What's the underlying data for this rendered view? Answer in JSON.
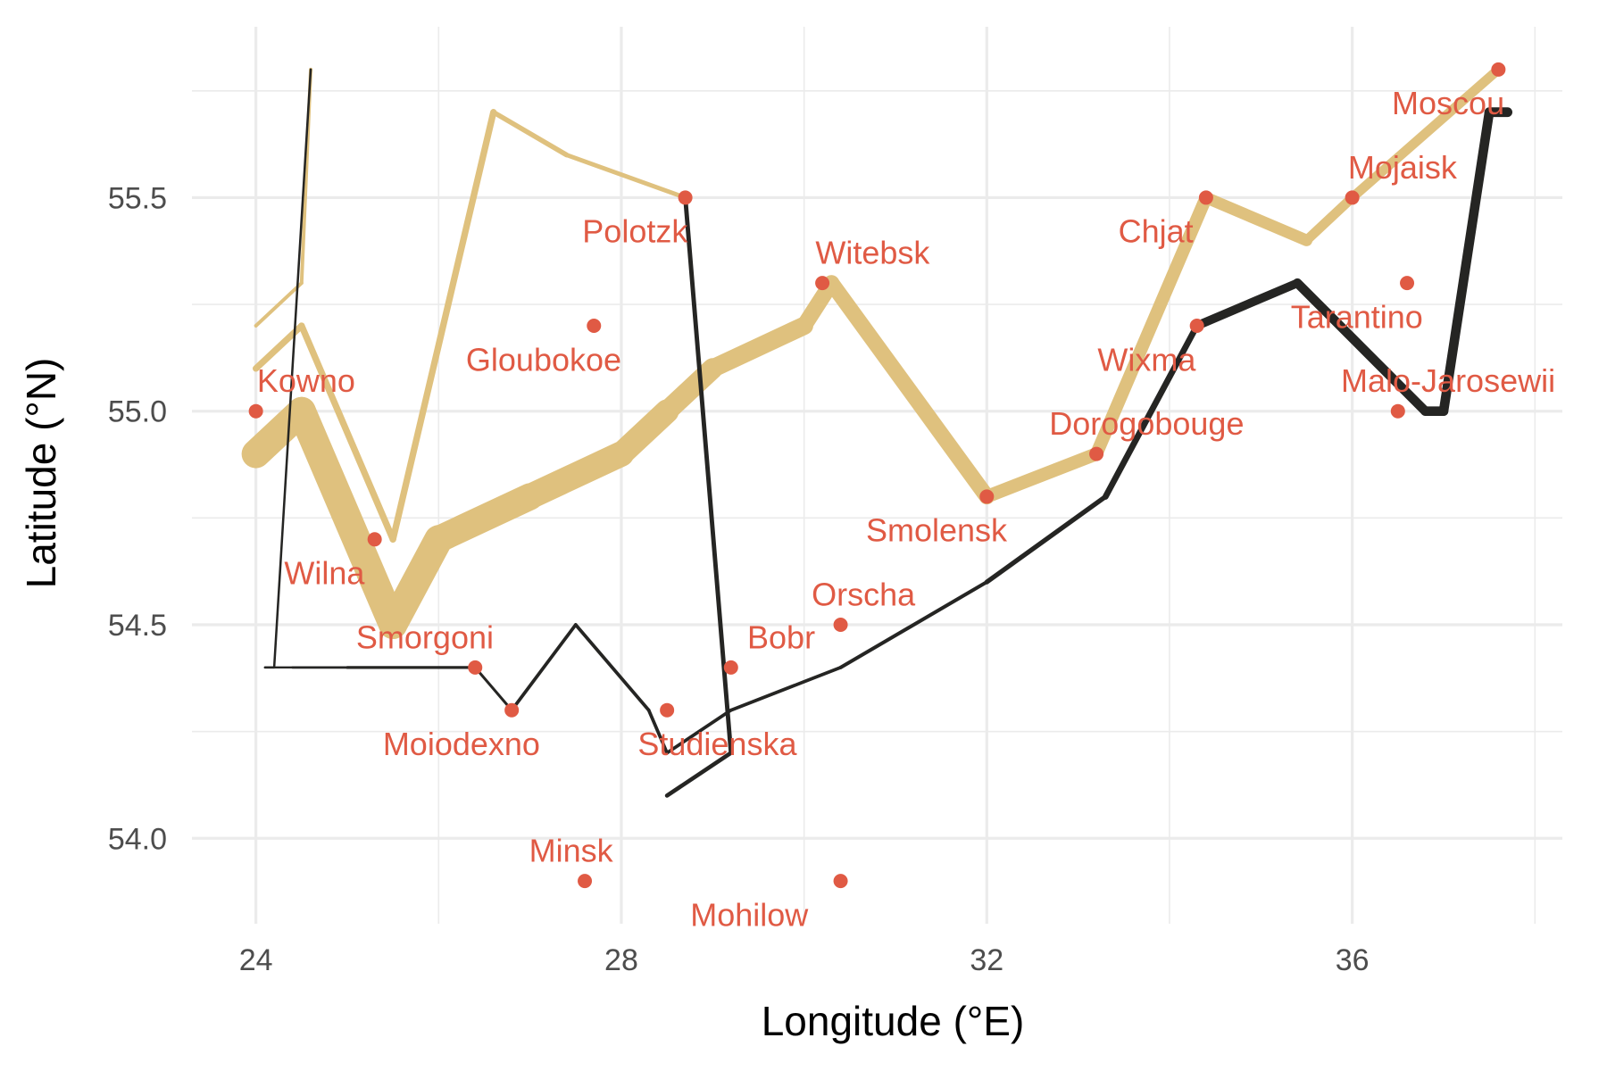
{
  "chart_data": {
    "type": "line",
    "title": "",
    "xlabel": "Longitude (°E)",
    "ylabel": "Latitude (°N)",
    "xlim": [
      23.3,
      38.3
    ],
    "ylim": [
      53.8,
      55.9
    ],
    "x_ticks": [
      24,
      28,
      32,
      36
    ],
    "y_ticks": [
      54.0,
      54.5,
      55.0,
      55.5
    ],
    "x_tick_labels": [
      "24",
      "28",
      "32",
      "36"
    ],
    "y_tick_labels": [
      "54.0",
      "54.5",
      "55.0",
      "55.5"
    ],
    "grid": true,
    "legend": "none",
    "colors": {
      "advance": "#dfc17e",
      "retreat": "#252523",
      "cities": "#e05a44"
    },
    "series": [
      {
        "direction": "A",
        "group": 1,
        "color": "#dfc17e",
        "points": [
          {
            "x": 24.0,
            "y": 54.9,
            "survivors": 340000
          },
          {
            "x": 24.5,
            "y": 55.0,
            "survivors": 340000
          },
          {
            "x": 25.5,
            "y": 54.5,
            "survivors": 340000
          },
          {
            "x": 26.0,
            "y": 54.7,
            "survivors": 320000
          },
          {
            "x": 27.0,
            "y": 54.8,
            "survivors": 300000
          },
          {
            "x": 28.0,
            "y": 54.9,
            "survivors": 280000
          },
          {
            "x": 28.5,
            "y": 55.0,
            "survivors": 240000
          },
          {
            "x": 29.0,
            "y": 55.1,
            "survivors": 210000
          },
          {
            "x": 30.0,
            "y": 55.2,
            "survivors": 180000
          },
          {
            "x": 30.3,
            "y": 55.3,
            "survivors": 175000
          },
          {
            "x": 32.0,
            "y": 54.8,
            "survivors": 145000
          },
          {
            "x": 33.2,
            "y": 54.9,
            "survivors": 140000
          },
          {
            "x": 34.4,
            "y": 55.5,
            "survivors": 127100
          },
          {
            "x": 35.5,
            "y": 55.4,
            "survivors": 100000
          },
          {
            "x": 36.0,
            "y": 55.5,
            "survivors": 100000
          },
          {
            "x": 37.6,
            "y": 55.8,
            "survivors": 100000
          }
        ]
      },
      {
        "direction": "R",
        "group": 1,
        "color": "#252523",
        "points": [
          {
            "x": 37.7,
            "y": 55.7,
            "survivors": 100000
          },
          {
            "x": 37.5,
            "y": 55.7,
            "survivors": 98000
          },
          {
            "x": 37.0,
            "y": 55.0,
            "survivors": 97000
          },
          {
            "x": 36.8,
            "y": 55.0,
            "survivors": 96000
          },
          {
            "x": 35.4,
            "y": 55.3,
            "survivors": 87000
          },
          {
            "x": 34.3,
            "y": 55.2,
            "survivors": 55000
          },
          {
            "x": 33.3,
            "y": 54.8,
            "survivors": 37000
          },
          {
            "x": 32.0,
            "y": 54.6,
            "survivors": 24000
          },
          {
            "x": 30.4,
            "y": 54.4,
            "survivors": 20000
          },
          {
            "x": 29.2,
            "y": 54.3,
            "survivors": 20000
          },
          {
            "x": 28.5,
            "y": 54.2,
            "survivors": 20000
          },
          {
            "x": 28.3,
            "y": 54.3,
            "survivors": 20000
          },
          {
            "x": 27.5,
            "y": 54.5,
            "survivors": 20000
          },
          {
            "x": 26.8,
            "y": 54.3,
            "survivors": 12000
          },
          {
            "x": 26.4,
            "y": 54.4,
            "survivors": 14000
          },
          {
            "x": 25.0,
            "y": 54.4,
            "survivors": 8000
          },
          {
            "x": 24.4,
            "y": 54.4,
            "survivors": 4000
          },
          {
            "x": 24.2,
            "y": 54.4,
            "survivors": 4000
          },
          {
            "x": 24.1,
            "y": 54.4,
            "survivors": 4000
          }
        ]
      },
      {
        "direction": "A",
        "group": 2,
        "color": "#dfc17e",
        "points": [
          {
            "x": 24.0,
            "y": 55.1,
            "survivors": 60000
          },
          {
            "x": 24.5,
            "y": 55.2,
            "survivors": 60000
          },
          {
            "x": 25.5,
            "y": 54.7,
            "survivors": 60000
          },
          {
            "x": 26.6,
            "y": 55.7,
            "survivors": 40000
          },
          {
            "x": 27.4,
            "y": 55.6,
            "survivors": 33000
          },
          {
            "x": 28.7,
            "y": 55.5,
            "survivors": 33000
          }
        ]
      },
      {
        "direction": "R",
        "group": 2,
        "color": "#252523",
        "points": [
          {
            "x": 28.7,
            "y": 55.5,
            "survivors": 33000
          },
          {
            "x": 29.2,
            "y": 54.2,
            "survivors": 30000
          },
          {
            "x": 28.5,
            "y": 54.1,
            "survivors": 30000
          }
        ]
      },
      {
        "direction": "A",
        "group": 3,
        "color": "#dfc17e",
        "points": [
          {
            "x": 24.0,
            "y": 55.2,
            "survivors": 22000
          },
          {
            "x": 24.5,
            "y": 55.3,
            "survivors": 22000
          },
          {
            "x": 24.6,
            "y": 55.8,
            "survivors": 6000
          }
        ]
      },
      {
        "direction": "R",
        "group": 3,
        "color": "#252523",
        "points": [
          {
            "x": 24.6,
            "y": 55.8,
            "survivors": 6000
          },
          {
            "x": 24.2,
            "y": 54.4,
            "survivors": 6000
          },
          {
            "x": 24.1,
            "y": 54.4,
            "survivors": 6000
          }
        ]
      }
    ],
    "cities": [
      {
        "name": "Kowno",
        "x": 24.0,
        "y": 55.0,
        "anchor": "middle",
        "dx": 0.55,
        "dy": 0.07
      },
      {
        "name": "Wilna",
        "x": 25.3,
        "y": 54.7,
        "anchor": "middle",
        "dx": -0.55,
        "dy": -0.08
      },
      {
        "name": "Smorgoni",
        "x": 26.4,
        "y": 54.4,
        "anchor": "middle",
        "dx": -0.55,
        "dy": 0.07
      },
      {
        "name": "Moiodexno",
        "x": 26.8,
        "y": 54.3,
        "anchor": "middle",
        "dx": -0.55,
        "dy": -0.08
      },
      {
        "name": "Gloubokoe",
        "x": 27.7,
        "y": 55.2,
        "anchor": "middle",
        "dx": -0.55,
        "dy": -0.08
      },
      {
        "name": "Minsk",
        "x": 27.6,
        "y": 53.9,
        "anchor": "middle",
        "dx": -0.15,
        "dy": 0.07
      },
      {
        "name": "Studienska",
        "x": 28.5,
        "y": 54.3,
        "anchor": "middle",
        "dx": 0.55,
        "dy": -0.08
      },
      {
        "name": "Polotzk",
        "x": 28.7,
        "y": 55.5,
        "anchor": "middle",
        "dx": -0.55,
        "dy": -0.08
      },
      {
        "name": "Bobr",
        "x": 29.2,
        "y": 54.4,
        "anchor": "middle",
        "dx": 0.55,
        "dy": 0.07
      },
      {
        "name": "Witebsk",
        "x": 30.2,
        "y": 55.3,
        "anchor": "middle",
        "dx": 0.55,
        "dy": 0.07
      },
      {
        "name": "Orscha",
        "x": 30.4,
        "y": 54.5,
        "anchor": "middle",
        "dx": 0.25,
        "dy": 0.07
      },
      {
        "name": "Mohilow",
        "x": 30.4,
        "y": 53.9,
        "anchor": "middle",
        "dx": -1.0,
        "dy": -0.08
      },
      {
        "name": "Smolensk",
        "x": 32.0,
        "y": 54.8,
        "anchor": "middle",
        "dx": -0.55,
        "dy": -0.08
      },
      {
        "name": "Dorogobouge",
        "x": 33.2,
        "y": 54.9,
        "anchor": "middle",
        "dx": 0.55,
        "dy": 0.07
      },
      {
        "name": "Wixma",
        "x": 34.3,
        "y": 55.2,
        "anchor": "middle",
        "dx": -0.55,
        "dy": -0.08
      },
      {
        "name": "Chjat",
        "x": 34.4,
        "y": 55.5,
        "anchor": "middle",
        "dx": -0.55,
        "dy": -0.08
      },
      {
        "name": "Mojaisk",
        "x": 36.0,
        "y": 55.5,
        "anchor": "middle",
        "dx": 0.55,
        "dy": 0.07
      },
      {
        "name": "Moscou",
        "x": 37.6,
        "y": 55.8,
        "anchor": "middle",
        "dx": -0.55,
        "dy": -0.08
      },
      {
        "name": "Tarantino",
        "x": 36.6,
        "y": 55.3,
        "anchor": "middle",
        "dx": -0.55,
        "dy": -0.08
      },
      {
        "name": "Malo-Jarosewii",
        "x": 36.5,
        "y": 55.0,
        "anchor": "middle",
        "dx": 0.55,
        "dy": 0.07
      }
    ]
  }
}
